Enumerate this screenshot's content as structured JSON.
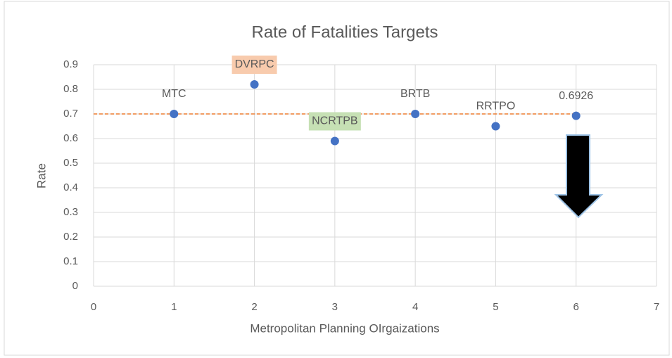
{
  "chart_data": {
    "type": "scatter",
    "title": "Rate of Fatalities Targets",
    "x_label": "Metropolitan Planning OIrgaizations",
    "y_label": "Rate",
    "x": [
      1,
      2,
      3,
      4,
      5,
      6
    ],
    "values": [
      0.7,
      0.82,
      0.59,
      0.7,
      0.65,
      0.6926
    ],
    "point_labels": [
      "MTC",
      "DVRPC",
      "NCRTPB",
      "BRTB",
      "RRTPO",
      "0.6926"
    ],
    "label_colors": [
      null,
      "#f8cbad",
      "#c6e0b4",
      null,
      null,
      null
    ],
    "color": "#4472c4",
    "target_line": {
      "value": 0.7,
      "color": "#ed7d31"
    },
    "xlim": [
      0,
      7
    ],
    "xticks": [
      0,
      1,
      2,
      3,
      4,
      5,
      6,
      7
    ],
    "ylim": [
      0,
      0.9
    ],
    "yticks": [
      0,
      0.1,
      0.2,
      0.3,
      0.4,
      0.5,
      0.6,
      0.7,
      0.8,
      0.9
    ],
    "grid": true
  }
}
